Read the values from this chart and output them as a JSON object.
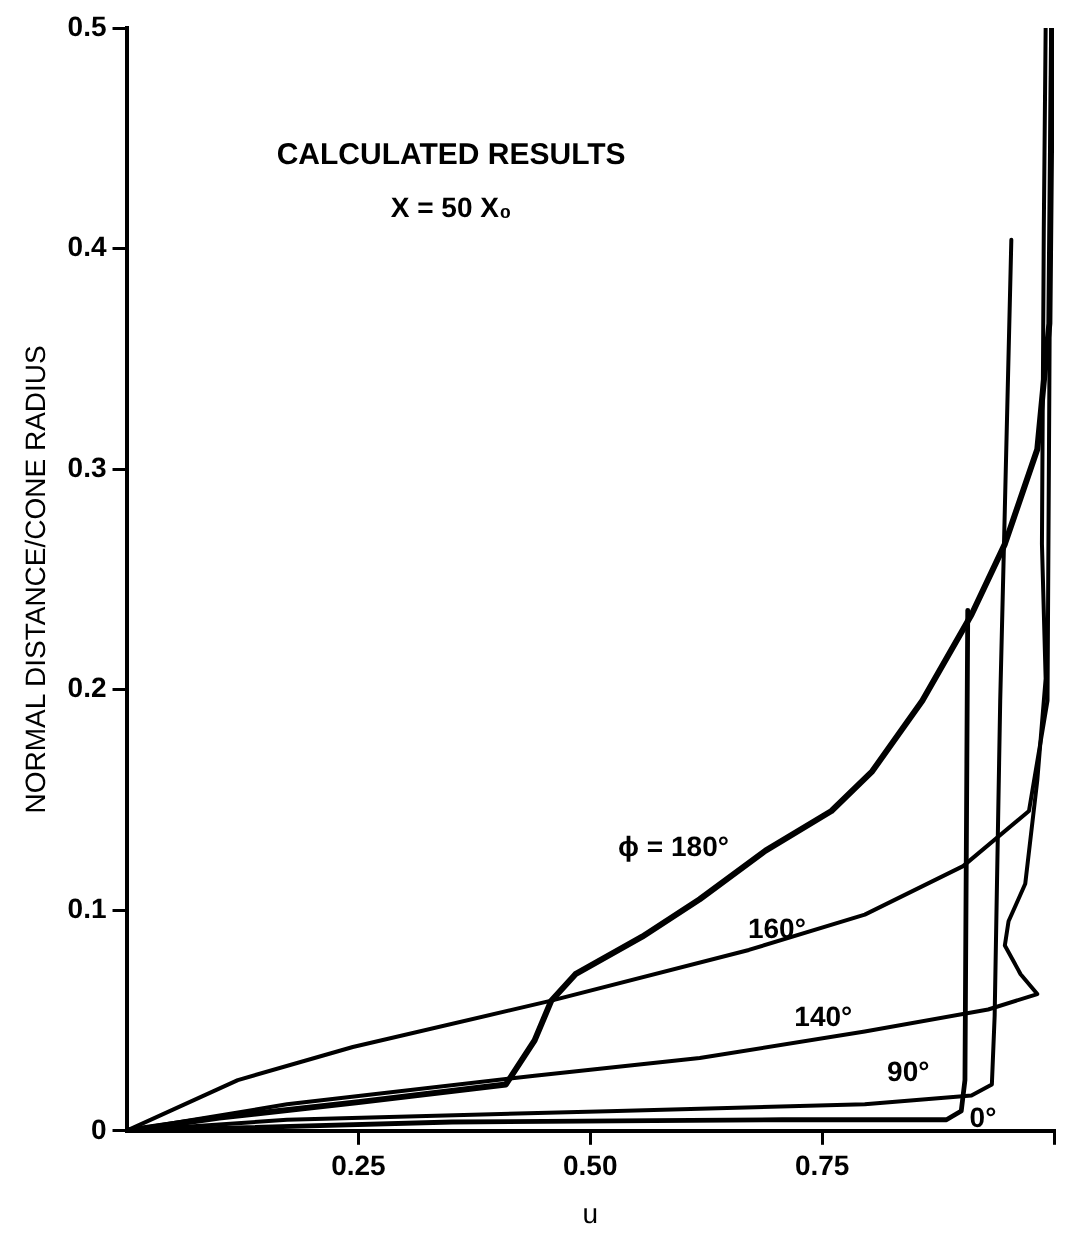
{
  "chart_data": {
    "type": "line",
    "title": "CALCULATED RESULTS",
    "subtitle": "X = 50 X₀",
    "xlabel": "u",
    "ylabel": "NORMAL DISTANCE/CONE RADIUS",
    "xlim": [
      0,
      1
    ],
    "xticks": [
      {
        "value": 0.25,
        "label": "0.25"
      },
      {
        "value": 0.5,
        "label": "0.50"
      },
      {
        "value": 0.75,
        "label": "0.75"
      },
      {
        "value": 1,
        "label": null
      }
    ],
    "ylim": [
      0,
      0.5
    ],
    "yticks": [
      0,
      0.1,
      0.2,
      0.3,
      0.4,
      0.5
    ],
    "grid": false,
    "legend": false,
    "marker": "none",
    "line_style": "solid",
    "series": [
      {
        "name": "ϕ = 180°",
        "color": "#000000",
        "x": [
          0,
          0.1,
          0.25,
          0.409,
          0.44,
          0.458,
          0.484,
          0.556,
          0.618,
          0.689,
          0.76,
          0.804,
          0.858,
          0.911,
          0.947,
          0.982,
          0.995,
          0.998
        ],
        "values": [
          0,
          0.006,
          0.013,
          0.021,
          0.041,
          0.059,
          0.071,
          0.088,
          0.105,
          0.127,
          0.145,
          0.163,
          0.195,
          0.234,
          0.266,
          0.309,
          0.366,
          0.5
        ]
      },
      {
        "name": "160°",
        "color": "#000000",
        "x": [
          0,
          0.12,
          0.244,
          0.458,
          0.671,
          0.796,
          0.902,
          0.973,
          0.993,
          0.995,
          0.997
        ],
        "values": [
          0,
          0.023,
          0.038,
          0.059,
          0.082,
          0.098,
          0.12,
          0.145,
          0.195,
          0.338,
          0.5
        ]
      },
      {
        "name": "140°",
        "color": "#000000",
        "x": [
          0,
          0.173,
          0.44,
          0.618,
          0.796,
          0.929,
          0.982,
          0.964,
          0.947,
          0.951,
          0.969,
          0.982,
          0.991,
          0.987,
          0.989,
          0.991
        ],
        "values": [
          0,
          0.012,
          0.025,
          0.033,
          0.045,
          0.055,
          0.062,
          0.071,
          0.084,
          0.095,
          0.112,
          0.159,
          0.205,
          0.266,
          0.409,
          0.5
        ]
      },
      {
        "name": "90°",
        "color": "#000000",
        "x": [
          0,
          0.173,
          0.529,
          0.796,
          0.911,
          0.933,
          0.936,
          0.942,
          0.954
        ],
        "values": [
          0,
          0.005,
          0.009,
          0.012,
          0.016,
          0.021,
          0.052,
          0.195,
          0.404
        ]
      },
      {
        "name": "0°",
        "color": "#000000",
        "x": [
          0,
          0.351,
          0.707,
          0.884,
          0.9,
          0.904,
          0.907
        ],
        "values": [
          0,
          0.004,
          0.005,
          0.005,
          0.009,
          0.023,
          0.236
        ]
      }
    ]
  }
}
